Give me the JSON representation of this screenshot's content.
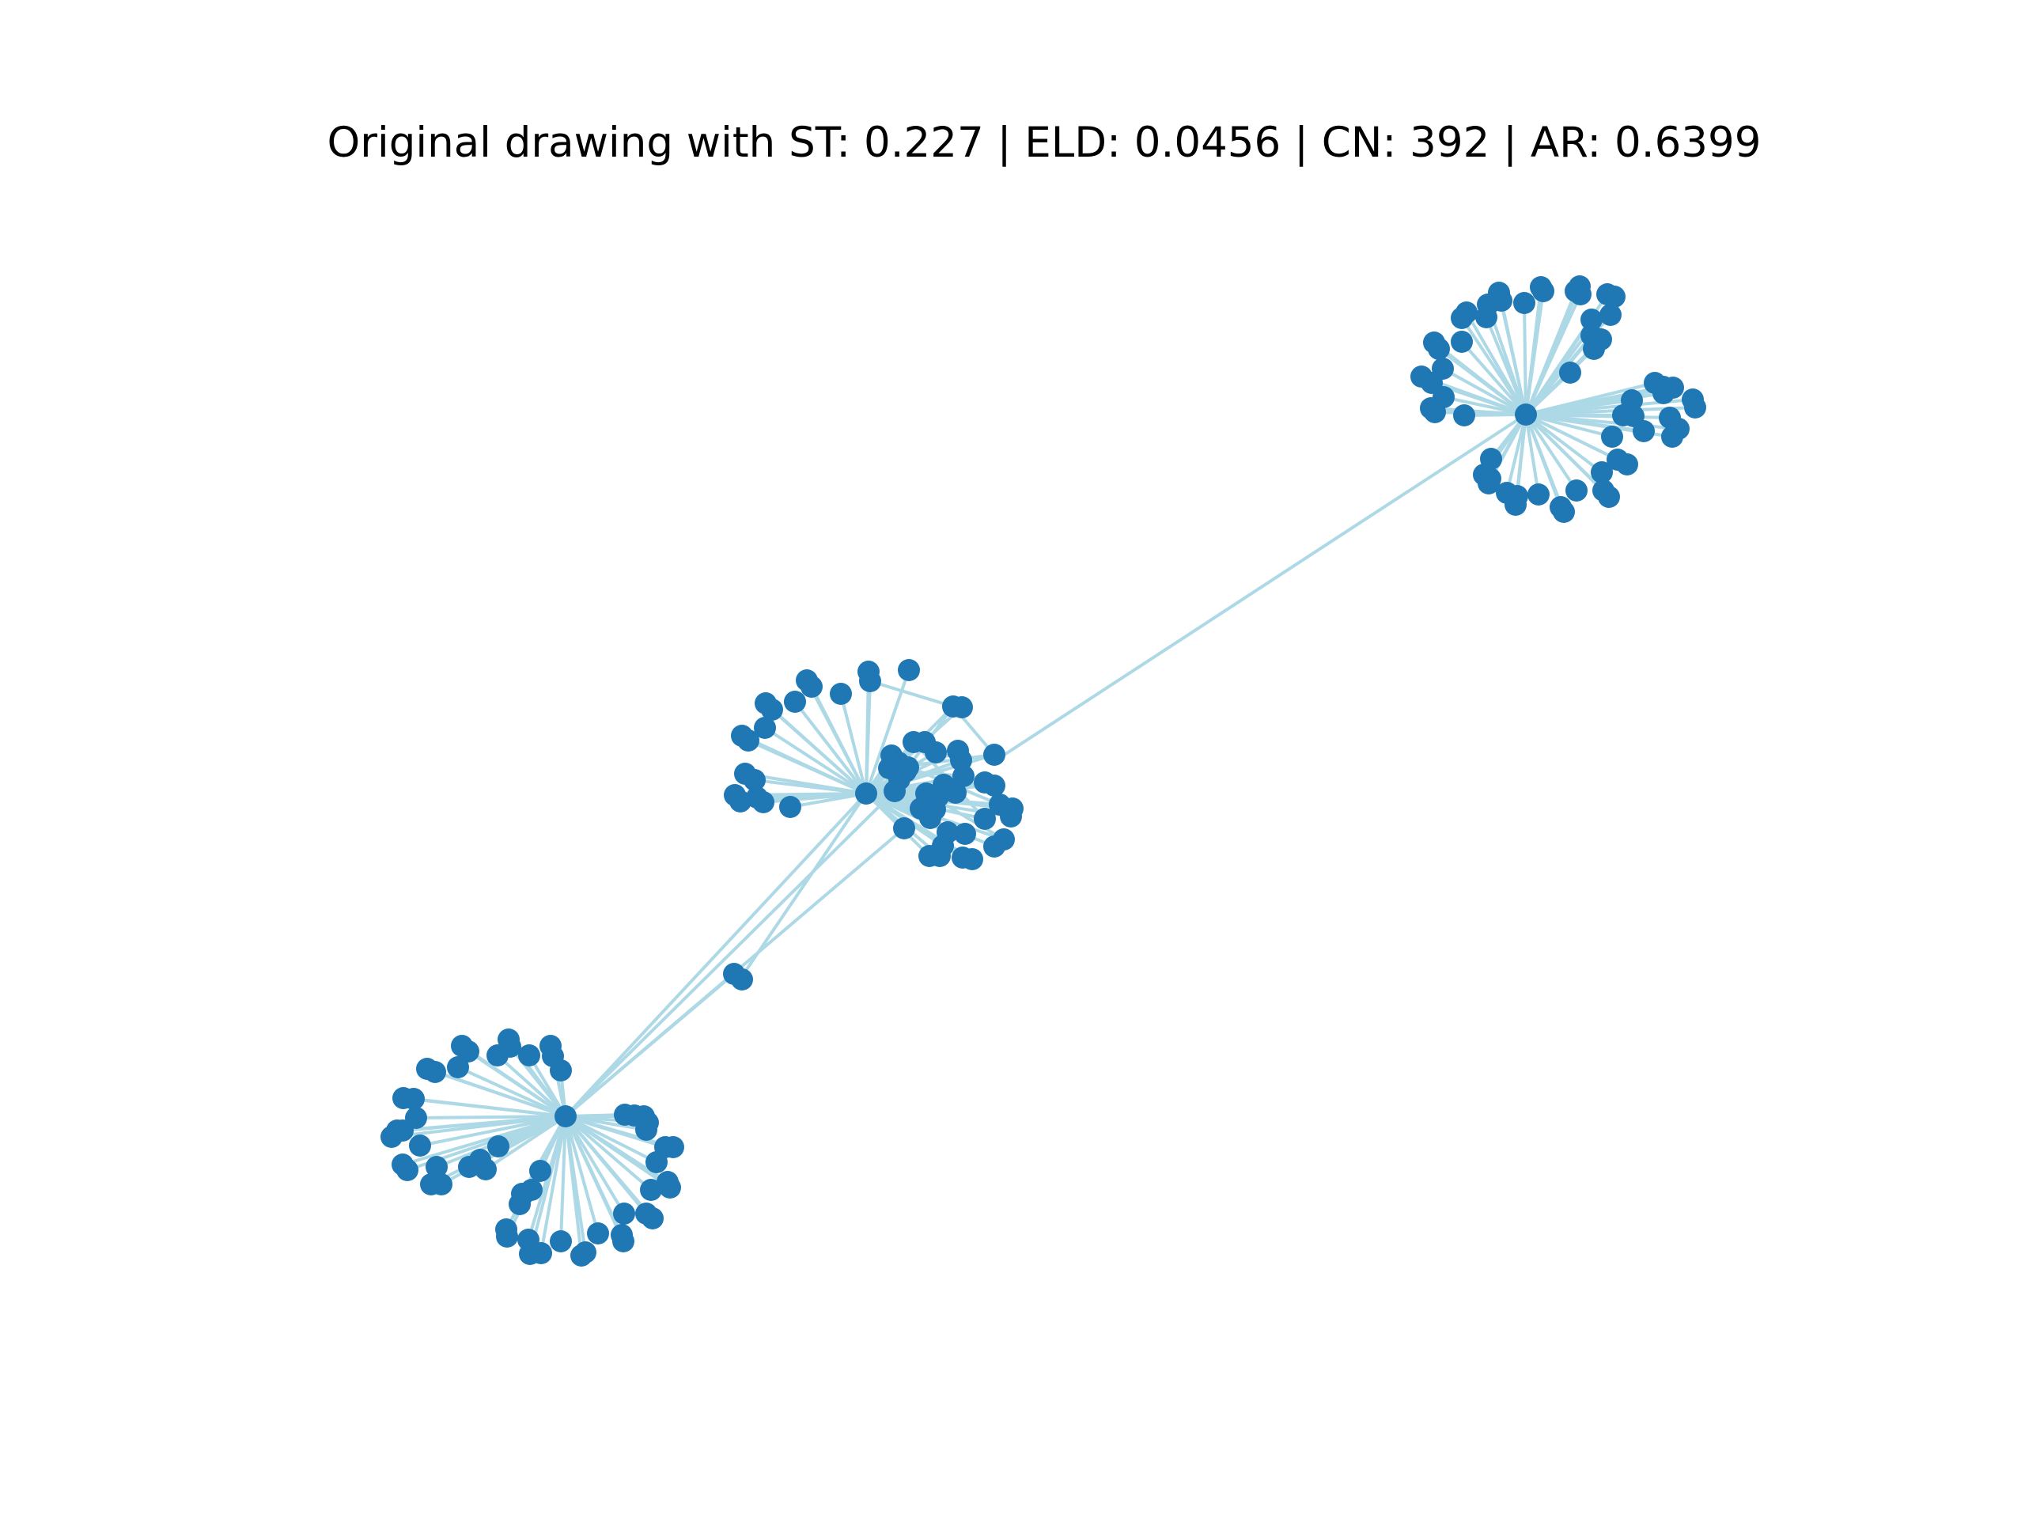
{
  "figure": {
    "title": "Original drawing with ST: 0.227 | ELD: 0.0456 | CN: 392 | AR: 0.6399"
  },
  "graph": {
    "node_color": "#1f77b4",
    "edge_color": "#add8e6",
    "background": "#ffffff",
    "hub_count": 3,
    "axes": "off"
  }
}
